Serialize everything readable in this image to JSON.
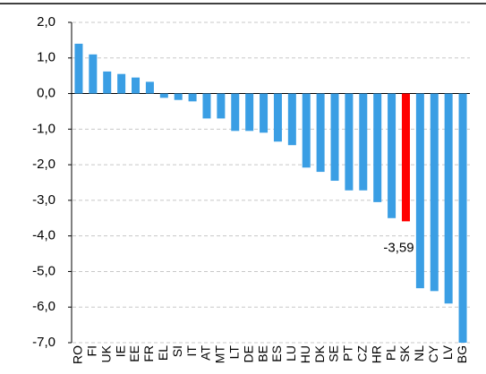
{
  "chart_data": {
    "type": "bar",
    "categories": [
      "RO",
      "FI",
      "UK",
      "IE",
      "EE",
      "FR",
      "EL",
      "SI",
      "IT",
      "AT",
      "MT",
      "LT",
      "DE",
      "BE",
      "ES",
      "LU",
      "HU",
      "DK",
      "SE",
      "PT",
      "CZ",
      "HR",
      "PL",
      "SK",
      "NL",
      "CY",
      "LV",
      "BG"
    ],
    "values": [
      1.4,
      1.1,
      0.62,
      0.55,
      0.45,
      0.33,
      -0.12,
      -0.18,
      -0.22,
      -0.7,
      -0.7,
      -1.05,
      -1.05,
      -1.1,
      -1.35,
      -1.45,
      -2.08,
      -2.2,
      -2.45,
      -2.72,
      -2.72,
      -3.05,
      -3.5,
      -3.59,
      -5.47,
      -5.55,
      -5.9,
      -7.0
    ],
    "value_labels": [
      null,
      null,
      null,
      null,
      null,
      null,
      null,
      null,
      null,
      null,
      null,
      null,
      null,
      null,
      null,
      null,
      null,
      null,
      null,
      null,
      null,
      null,
      null,
      "-3,59",
      null,
      null,
      null,
      null
    ],
    "colors": [
      "#3a9ee4",
      "#3a9ee4",
      "#3a9ee4",
      "#3a9ee4",
      "#3a9ee4",
      "#3a9ee4",
      "#3a9ee4",
      "#3a9ee4",
      "#3a9ee4",
      "#3a9ee4",
      "#3a9ee4",
      "#3a9ee4",
      "#3a9ee4",
      "#3a9ee4",
      "#3a9ee4",
      "#3a9ee4",
      "#3a9ee4",
      "#3a9ee4",
      "#3a9ee4",
      "#3a9ee4",
      "#3a9ee4",
      "#3a9ee4",
      "#3a9ee4",
      "#ff0000",
      "#3a9ee4",
      "#3a9ee4",
      "#3a9ee4",
      "#3a9ee4"
    ],
    "ylim": [
      -7,
      2
    ],
    "yticks": [
      {
        "value": 2,
        "label": "2,0"
      },
      {
        "value": 1,
        "label": "1,0"
      },
      {
        "value": 0,
        "label": "0,0"
      },
      {
        "value": -1,
        "label": "-1,0"
      },
      {
        "value": -2,
        "label": "-2,0"
      },
      {
        "value": -3,
        "label": "-3,0"
      },
      {
        "value": -4,
        "label": "-4,0"
      },
      {
        "value": -5,
        "label": "-5,0"
      },
      {
        "value": -6,
        "label": "-6,0"
      },
      {
        "value": -7,
        "label": "-7,0"
      }
    ],
    "grid": true
  }
}
